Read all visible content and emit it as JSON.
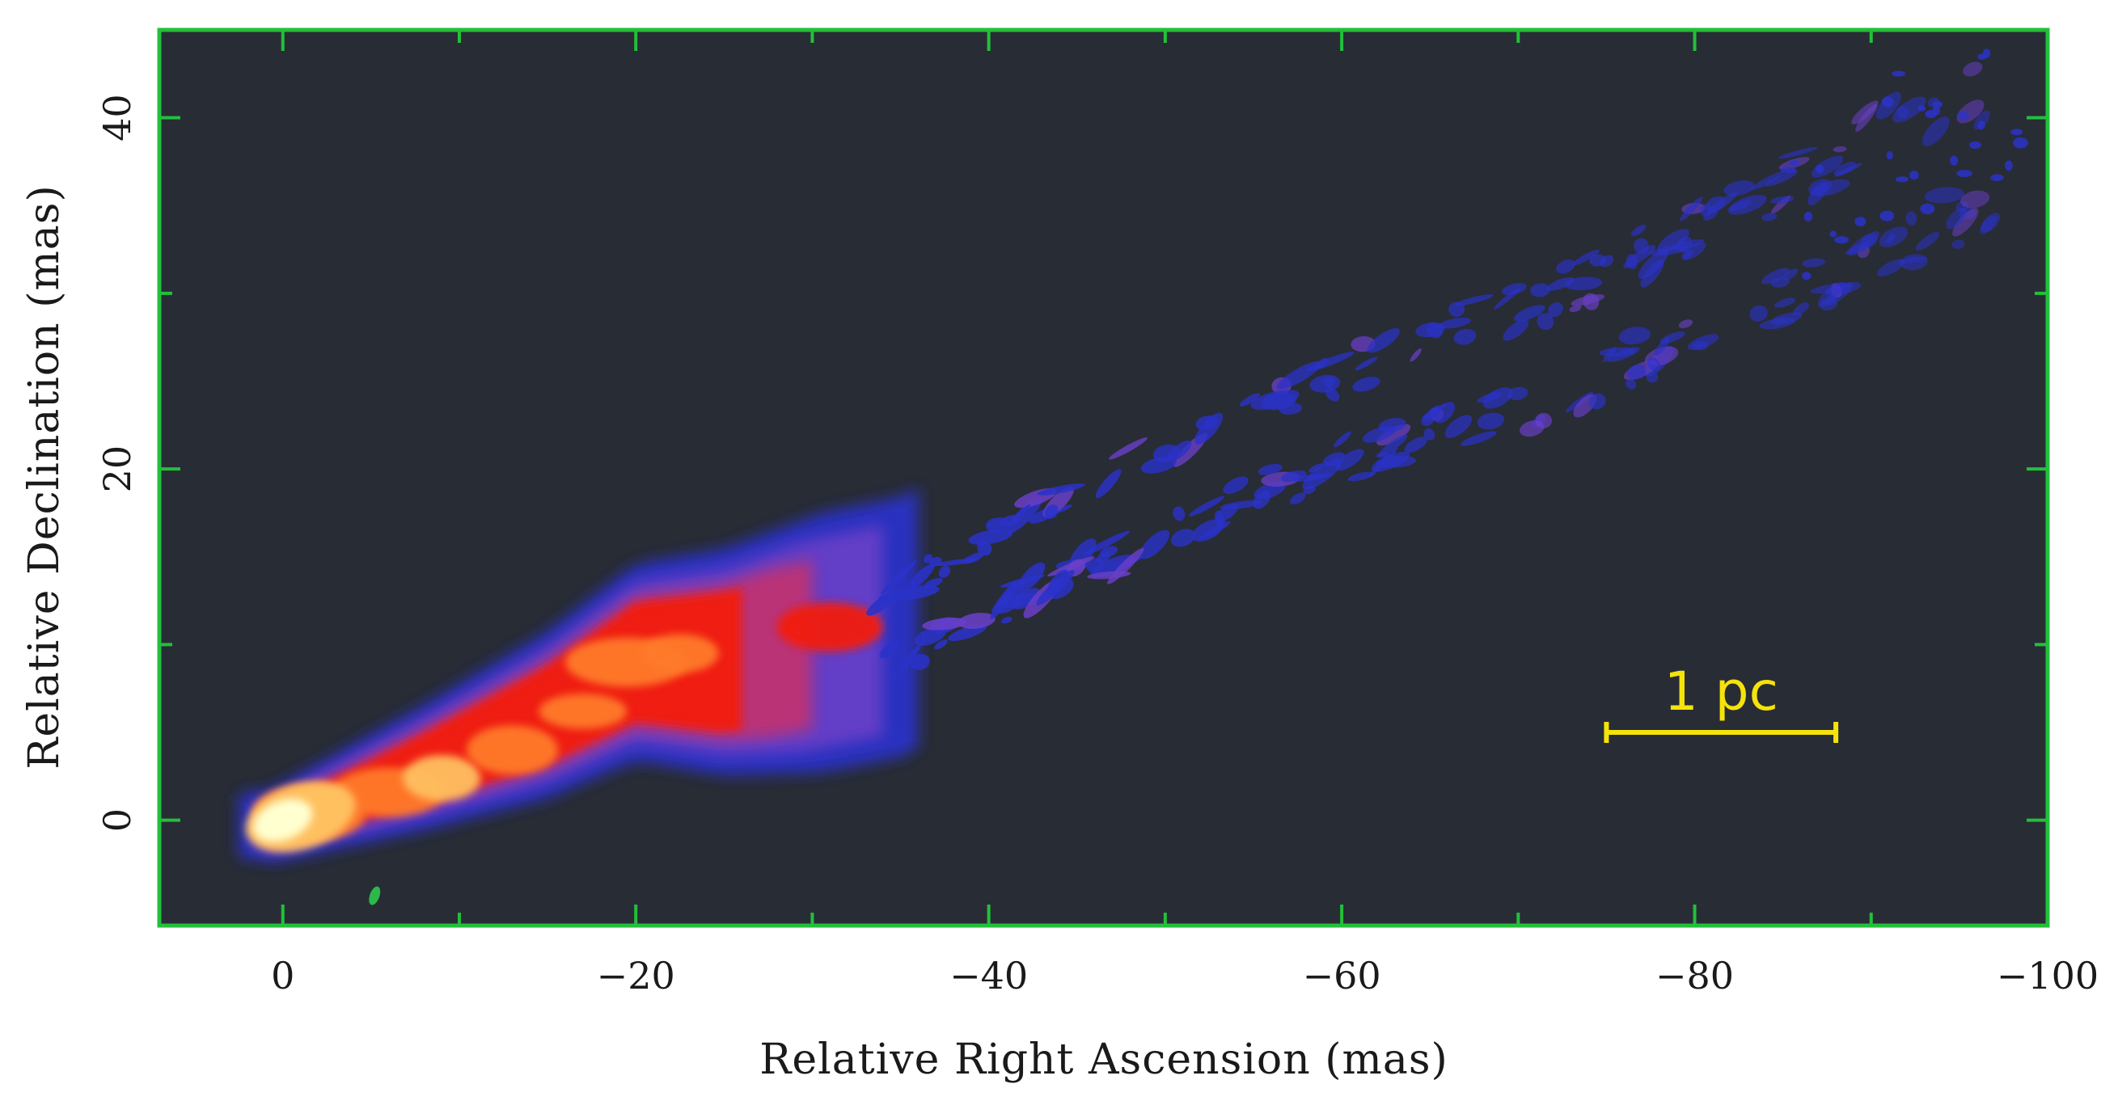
{
  "chart_data": {
    "type": "heatmap",
    "title": "",
    "xlabel": "Relative Right Ascension (mas)",
    "ylabel": "Relative Declination (mas)",
    "xlim": [
      7,
      -100
    ],
    "ylim": [
      -6,
      45
    ],
    "xticks": [
      0,
      -20,
      -40,
      -60,
      -80,
      -100
    ],
    "xtick_labels": [
      "0",
      "−20",
      "−40",
      "−60",
      "−80",
      "−100"
    ],
    "yticks": [
      0,
      20,
      40
    ],
    "ytick_labels": [
      "0",
      "20",
      "40"
    ],
    "minor_xticks": [
      -10,
      -30,
      -50,
      -70,
      -90
    ],
    "minor_yticks": [
      10,
      30
    ],
    "grid": false,
    "colors": {
      "background": "#282c35",
      "frame": "#22c03a",
      "scale_bar": "#f5e30a",
      "colormap": [
        "#2a32c8",
        "#6a3fc8",
        "#c4306e",
        "#f21a10",
        "#ff7a2a",
        "#ffc060",
        "#ffffd0"
      ]
    },
    "jet_ridge": [
      [
        0.5,
        -0.3
      ],
      [
        -8,
        3
      ],
      [
        -15,
        6
      ],
      [
        -20,
        9
      ],
      [
        -25,
        9
      ],
      [
        -35,
        11
      ],
      [
        -48,
        18
      ],
      [
        -60,
        23
      ],
      [
        -72,
        27
      ],
      [
        -85,
        33
      ],
      [
        -95,
        38
      ]
    ],
    "core": {
      "x": 0,
      "y": 0
    },
    "bright_knots": [
      {
        "x": 0,
        "y": 0
      },
      {
        "x": -9,
        "y": 2
      },
      {
        "x": -20,
        "y": 9
      },
      {
        "x": -32,
        "y": 11
      }
    ],
    "scale_bar": {
      "label": "1 pc",
      "x_start": -75,
      "x_end": -88,
      "y": 5
    }
  }
}
